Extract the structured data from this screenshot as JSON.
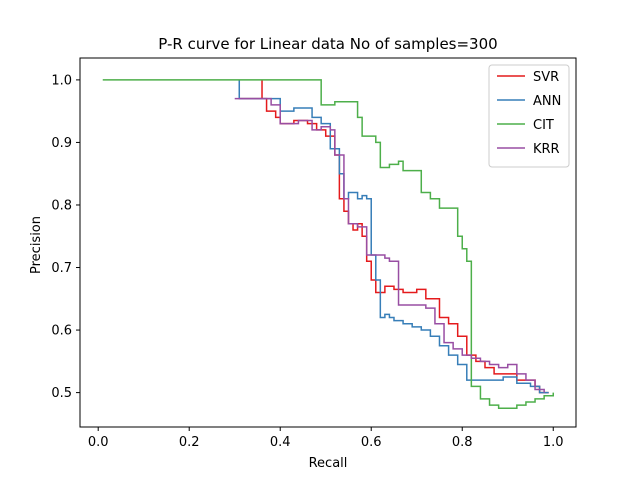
{
  "chart_data": {
    "type": "line",
    "title": "P-R curve for Linear data No of samples=300",
    "xlabel": "Recall",
    "ylabel": "Precision",
    "xlim": [
      -0.04,
      1.05
    ],
    "ylim": [
      0.445,
      1.035
    ],
    "xticks": [
      0.0,
      0.2,
      0.4,
      0.6,
      0.8,
      1.0
    ],
    "xtick_labels": [
      "0.0",
      "0.2",
      "0.4",
      "0.6",
      "0.8",
      "1.0"
    ],
    "yticks": [
      0.5,
      0.6,
      0.7,
      0.8,
      0.9,
      1.0
    ],
    "ytick_labels": [
      "0.5",
      "0.6",
      "0.7",
      "0.8",
      "0.9",
      "1.0"
    ],
    "grid": false,
    "legend_position": "top-right",
    "step": true,
    "series": [
      {
        "name": "SVR",
        "color": "#e41a1c",
        "points": [
          [
            0.31,
            0.97
          ],
          [
            0.36,
            1.0
          ],
          [
            0.36,
            0.97
          ],
          [
            0.37,
            0.95
          ],
          [
            0.39,
            0.94
          ],
          [
            0.4,
            0.93
          ],
          [
            0.43,
            0.935
          ],
          [
            0.46,
            0.93
          ],
          [
            0.48,
            0.92
          ],
          [
            0.5,
            0.91
          ],
          [
            0.52,
            0.88
          ],
          [
            0.53,
            0.81
          ],
          [
            0.54,
            0.79
          ],
          [
            0.55,
            0.77
          ],
          [
            0.56,
            0.76
          ],
          [
            0.57,
            0.77
          ],
          [
            0.58,
            0.75
          ],
          [
            0.59,
            0.71
          ],
          [
            0.6,
            0.68
          ],
          [
            0.61,
            0.66
          ],
          [
            0.62,
            0.66
          ],
          [
            0.63,
            0.67
          ],
          [
            0.65,
            0.665
          ],
          [
            0.67,
            0.66
          ],
          [
            0.7,
            0.665
          ],
          [
            0.72,
            0.65
          ],
          [
            0.75,
            0.62
          ],
          [
            0.77,
            0.61
          ],
          [
            0.79,
            0.59
          ],
          [
            0.81,
            0.56
          ],
          [
            0.83,
            0.55
          ],
          [
            0.85,
            0.54
          ],
          [
            0.87,
            0.53
          ],
          [
            0.89,
            0.53
          ],
          [
            0.92,
            0.52
          ],
          [
            0.94,
            0.52
          ],
          [
            0.96,
            0.51
          ],
          [
            0.97,
            0.5
          ],
          [
            0.99,
            0.5
          ]
        ]
      },
      {
        "name": "ANN",
        "color": "#377eb8",
        "points": [
          [
            0.31,
            1.0
          ],
          [
            0.31,
            0.97
          ],
          [
            0.36,
            0.97
          ],
          [
            0.4,
            0.95
          ],
          [
            0.43,
            0.955
          ],
          [
            0.46,
            0.955
          ],
          [
            0.47,
            0.94
          ],
          [
            0.49,
            0.93
          ],
          [
            0.51,
            0.89
          ],
          [
            0.53,
            0.85
          ],
          [
            0.54,
            0.81
          ],
          [
            0.55,
            0.82
          ],
          [
            0.57,
            0.81
          ],
          [
            0.58,
            0.815
          ],
          [
            0.59,
            0.81
          ],
          [
            0.6,
            0.72
          ],
          [
            0.61,
            0.68
          ],
          [
            0.62,
            0.62
          ],
          [
            0.63,
            0.625
          ],
          [
            0.64,
            0.62
          ],
          [
            0.65,
            0.615
          ],
          [
            0.67,
            0.61
          ],
          [
            0.69,
            0.605
          ],
          [
            0.71,
            0.6
          ],
          [
            0.73,
            0.59
          ],
          [
            0.75,
            0.575
          ],
          [
            0.77,
            0.56
          ],
          [
            0.79,
            0.545
          ],
          [
            0.81,
            0.52
          ],
          [
            0.83,
            0.52
          ],
          [
            0.85,
            0.52
          ],
          [
            0.87,
            0.52
          ],
          [
            0.89,
            0.525
          ],
          [
            0.92,
            0.515
          ],
          [
            0.95,
            0.51
          ],
          [
            0.97,
            0.5
          ],
          [
            0.99,
            0.5
          ]
        ]
      },
      {
        "name": "CIT",
        "color": "#4daf4a",
        "points": [
          [
            0.01,
            1.0
          ],
          [
            0.49,
            1.0
          ],
          [
            0.49,
            0.96
          ],
          [
            0.52,
            0.965
          ],
          [
            0.55,
            0.965
          ],
          [
            0.57,
            0.94
          ],
          [
            0.58,
            0.91
          ],
          [
            0.6,
            0.91
          ],
          [
            0.61,
            0.9
          ],
          [
            0.62,
            0.86
          ],
          [
            0.64,
            0.865
          ],
          [
            0.66,
            0.87
          ],
          [
            0.67,
            0.855
          ],
          [
            0.69,
            0.855
          ],
          [
            0.71,
            0.82
          ],
          [
            0.73,
            0.81
          ],
          [
            0.75,
            0.795
          ],
          [
            0.77,
            0.795
          ],
          [
            0.79,
            0.75
          ],
          [
            0.8,
            0.73
          ],
          [
            0.81,
            0.71
          ],
          [
            0.82,
            0.69
          ],
          [
            0.82,
            0.51
          ],
          [
            0.84,
            0.49
          ],
          [
            0.86,
            0.48
          ],
          [
            0.88,
            0.475
          ],
          [
            0.9,
            0.475
          ],
          [
            0.92,
            0.48
          ],
          [
            0.94,
            0.485
          ],
          [
            0.96,
            0.49
          ],
          [
            0.98,
            0.495
          ],
          [
            1.0,
            0.5
          ]
        ]
      },
      {
        "name": "KRR",
        "color": "#984ea3",
        "points": [
          [
            0.3,
            0.97
          ],
          [
            0.35,
            0.97
          ],
          [
            0.38,
            0.96
          ],
          [
            0.4,
            0.93
          ],
          [
            0.42,
            0.93
          ],
          [
            0.44,
            0.935
          ],
          [
            0.47,
            0.92
          ],
          [
            0.49,
            0.925
          ],
          [
            0.51,
            0.92
          ],
          [
            0.52,
            0.88
          ],
          [
            0.54,
            0.81
          ],
          [
            0.55,
            0.77
          ],
          [
            0.57,
            0.765
          ],
          [
            0.59,
            0.72
          ],
          [
            0.61,
            0.72
          ],
          [
            0.62,
            0.72
          ],
          [
            0.63,
            0.715
          ],
          [
            0.64,
            0.71
          ],
          [
            0.66,
            0.64
          ],
          [
            0.68,
            0.64
          ],
          [
            0.7,
            0.64
          ],
          [
            0.72,
            0.635
          ],
          [
            0.74,
            0.61
          ],
          [
            0.76,
            0.58
          ],
          [
            0.78,
            0.57
          ],
          [
            0.8,
            0.56
          ],
          [
            0.82,
            0.555
          ],
          [
            0.84,
            0.55
          ],
          [
            0.86,
            0.545
          ],
          [
            0.88,
            0.54
          ],
          [
            0.9,
            0.545
          ],
          [
            0.92,
            0.53
          ],
          [
            0.94,
            0.52
          ],
          [
            0.96,
            0.505
          ],
          [
            0.98,
            0.5
          ]
        ]
      }
    ]
  }
}
